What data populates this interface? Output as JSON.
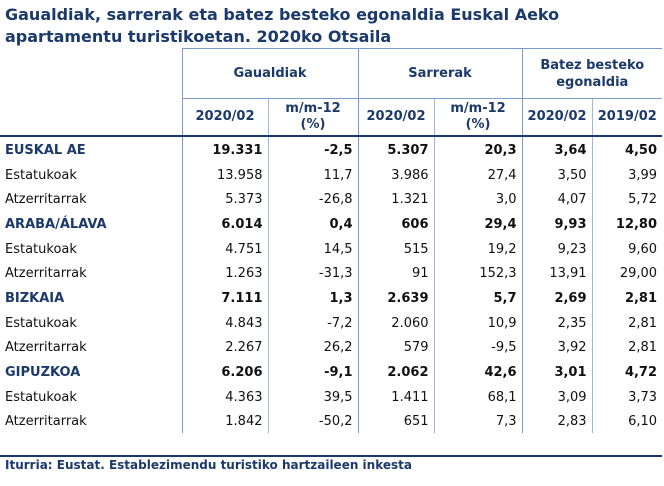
{
  "title": "Gaualdiak, sarrerak eta batez besteko egonaldia Euskal Aeko apartamentu turistikoetan. 2020ko Otsaila",
  "headers": {
    "group_overnights": "Gaualdiak",
    "group_entries": "Sarrerak",
    "group_stay": "Batez besteko egonaldia",
    "col_period_current": "2020/02",
    "col_yoy": "m/m-12 (%)",
    "col_period_prev": "2019/02"
  },
  "rows": [
    {
      "label": "EUSKAL AE",
      "type": "region",
      "values": [
        "19.331",
        "-2,5",
        "5.307",
        "20,3",
        "3,64",
        "4,50"
      ]
    },
    {
      "label": "Estatukoak",
      "type": "plain",
      "values": [
        "13.958",
        "11,7",
        "3.986",
        "27,4",
        "3,50",
        "3,99"
      ]
    },
    {
      "label": "Atzerritarrak",
      "type": "plain",
      "values": [
        "5.373",
        "-26,8",
        "1.321",
        "3,0",
        "4,07",
        "5,72"
      ]
    },
    {
      "label": "ARABA/ÁLAVA",
      "type": "region",
      "values": [
        "6.014",
        "0,4",
        "606",
        "29,4",
        "9,93",
        "12,80"
      ]
    },
    {
      "label": "Estatukoak",
      "type": "plain",
      "values": [
        "4.751",
        "14,5",
        "515",
        "19,2",
        "9,23",
        "9,60"
      ]
    },
    {
      "label": "Atzerritarrak",
      "type": "plain",
      "values": [
        "1.263",
        "-31,3",
        "91",
        "152,3",
        "13,91",
        "29,00"
      ]
    },
    {
      "label": "BIZKAIA",
      "type": "region",
      "values": [
        "7.111",
        "1,3",
        "2.639",
        "5,7",
        "2,69",
        "2,81"
      ]
    },
    {
      "label": "Estatukoak",
      "type": "plain",
      "values": [
        "4.843",
        "-7,2",
        "2.060",
        "10,9",
        "2,35",
        "2,81"
      ]
    },
    {
      "label": "Atzerritarrak",
      "type": "plain",
      "values": [
        "2.267",
        "26,2",
        "579",
        "-9,5",
        "3,92",
        "2,81"
      ]
    },
    {
      "label": "GIPUZKOA",
      "type": "region",
      "values": [
        "6.206",
        "-9,1",
        "2.062",
        "42,6",
        "3,01",
        "4,72"
      ]
    },
    {
      "label": "Estatukoak",
      "type": "plain",
      "values": [
        "4.363",
        "39,5",
        "1.411",
        "68,1",
        "3,09",
        "3,73"
      ]
    },
    {
      "label": "Atzerritarrak",
      "type": "plain",
      "values": [
        "1.842",
        "-50,2",
        "651",
        "7,3",
        "2,83",
        "6,10"
      ]
    }
  ],
  "source": "Iturria: Eustat. Establezimendu turistiko hartzaileen inkesta"
}
